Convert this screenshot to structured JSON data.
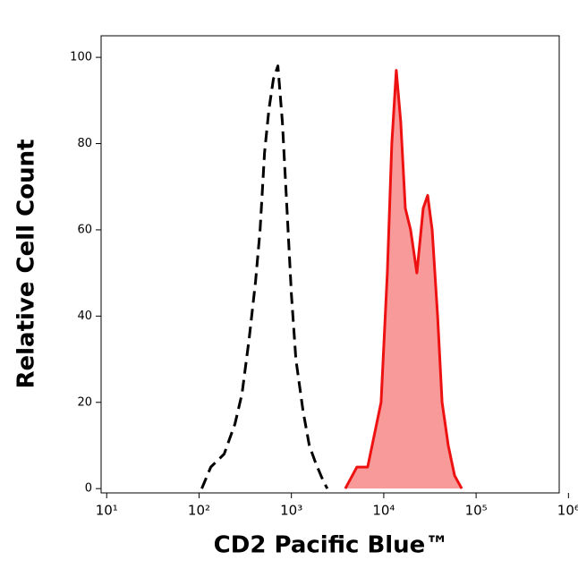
{
  "chart_data": {
    "type": "area",
    "x_label": "CD2 Pacific Blue™",
    "y_label": "Relative Cell Count",
    "log_x": true,
    "xlim": [
      8.7,
      794000
    ],
    "xticks": [
      {
        "value": 10,
        "label": "10¹"
      },
      {
        "value": 100,
        "label": "10²"
      },
      {
        "value": 1000,
        "label": "10³"
      },
      {
        "value": 10000,
        "label": "10⁴"
      },
      {
        "value": 100000,
        "label": "10⁵"
      },
      {
        "value": 1000000,
        "label": "10⁶"
      }
    ],
    "ylim": [
      -1,
      105
    ],
    "yticks": [
      0,
      20,
      40,
      60,
      80,
      100
    ],
    "series": [
      {
        "color": "#000000",
        "dashed": true,
        "fill": null,
        "x": [
          107,
          134,
          187,
          245,
          292,
          350,
          409,
          458,
          512,
          572,
          639,
          715,
          799,
          894,
          1000,
          1119,
          1337,
          1563,
          1828,
          2188,
          2445
        ],
        "values": [
          0,
          5,
          8,
          15,
          22,
          35,
          48,
          60,
          78,
          88,
          95,
          98,
          85,
          65,
          45,
          30,
          18,
          10,
          6,
          2,
          0
        ]
      },
      {
        "color": "#ee1111",
        "dashed": false,
        "fill": "#f99a9a",
        "x": [
          3828,
          5116,
          6686,
          9354,
          10935,
          12224,
          13669,
          15289,
          17100,
          19540,
          22850,
          26720,
          29900,
          33440,
          38270,
          42780,
          50000,
          58480,
          69980
        ],
        "values": [
          0,
          5,
          5,
          20,
          50,
          80,
          97,
          85,
          65,
          60,
          50,
          65,
          68,
          60,
          40,
          20,
          10,
          3,
          0
        ]
      }
    ]
  }
}
